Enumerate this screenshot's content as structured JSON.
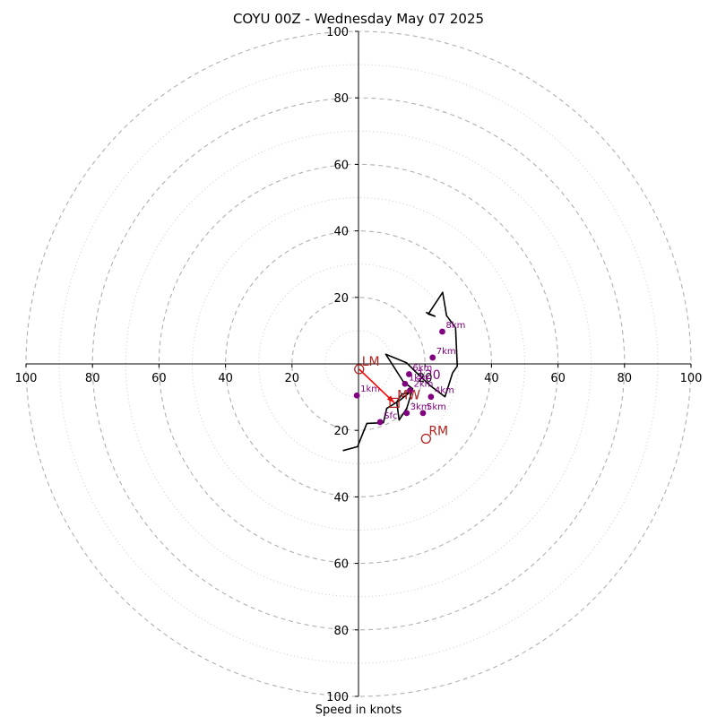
{
  "chart_data": {
    "type": "hodograph",
    "title": "COYU 00Z - Wednesday May 07 2025",
    "xlabel": "Speed in knots",
    "xlim": [
      -100,
      100
    ],
    "ylim": [
      -100,
      100
    ],
    "ring_major": [
      20,
      40,
      60,
      80,
      100
    ],
    "ring_minor": [
      10,
      30,
      50,
      70,
      90
    ],
    "x_tick_labels": [
      "100",
      "80",
      "60",
      "40",
      "20",
      "20",
      "40",
      "60",
      "80",
      "100"
    ],
    "x_tick_values": [
      -100,
      -80,
      -60,
      -40,
      -20,
      20,
      40,
      60,
      80,
      100
    ],
    "y_tick_labels": [
      "100",
      "80",
      "60",
      "40",
      "20",
      "20",
      "40",
      "60",
      "80",
      "100"
    ],
    "y_tick_values": [
      100,
      80,
      60,
      40,
      20,
      -20,
      -40,
      -60,
      -80,
      -100
    ],
    "trace": {
      "color": "#000000",
      "points": [
        [
          -4.7,
          -26.1
        ],
        [
          -0.3,
          -24.9
        ],
        [
          2.5,
          -17.9
        ],
        [
          7.5,
          -17.7
        ],
        [
          8.5,
          -13.4
        ],
        [
          12.5,
          -10.9
        ],
        [
          15.5,
          -8.5
        ],
        [
          13.0,
          -9.1
        ],
        [
          11.5,
          -11.5
        ],
        [
          12.2,
          -16.9
        ],
        [
          14.5,
          -13.4
        ],
        [
          16.3,
          -7.5
        ],
        [
          13.5,
          -5.4
        ],
        [
          8.2,
          2.9
        ],
        [
          14.5,
          0.3
        ],
        [
          17.5,
          -2.7
        ],
        [
          21.5,
          -6.5
        ],
        [
          26.0,
          -9.9
        ],
        [
          28.3,
          -2.7
        ],
        [
          29.7,
          -0.7
        ],
        [
          29.2,
          10.9
        ],
        [
          26.5,
          14.5
        ],
        [
          25.3,
          21.5
        ],
        [
          21.0,
          15.0
        ],
        [
          23.0,
          14.3
        ],
        [
          20.3,
          15.5
        ]
      ]
    },
    "height_markers": [
      {
        "label": "Sfc",
        "u": 6.5,
        "v": -17.5
      },
      {
        "label": "1km",
        "u": -0.5,
        "v": -9.5
      },
      {
        "label": "1km",
        "u": 14.0,
        "v": -6.0
      },
      {
        "label": "2km",
        "u": 15.5,
        "v": -8.0
      },
      {
        "label": "3km",
        "u": 14.5,
        "v": -14.8
      },
      {
        "label": "4km",
        "u": 21.8,
        "v": -9.9
      },
      {
        "label": "5km",
        "u": 19.4,
        "v": -14.8
      },
      {
        "label": "6km",
        "u": 15.2,
        "v": -3.1
      },
      {
        "label": "7km",
        "u": 22.3,
        "v": 1.9
      },
      {
        "label": "8km",
        "u": 25.2,
        "v": 9.7
      }
    ],
    "storm_motion": [
      {
        "label": "LM",
        "u": 0.2,
        "v": -1.6,
        "marker": "circle"
      },
      {
        "label": "MW",
        "u": 10.8,
        "v": -11.7,
        "marker": "square"
      },
      {
        "label": "RM",
        "u": 20.3,
        "v": -22.5,
        "marker": "circle"
      }
    ],
    "motion_vector": {
      "color": "#ff0000",
      "from": [
        0.2,
        -1.6
      ],
      "to": [
        10.8,
        -11.7
      ]
    },
    "extra_labels": [
      {
        "text": "120",
        "u": 17.5,
        "v": -4.6,
        "color": "#800080"
      }
    ],
    "colors": {
      "grid": "#b0b0b0",
      "marker": "#800080",
      "motion": "#b22222",
      "arrow": "#ff0000"
    }
  }
}
